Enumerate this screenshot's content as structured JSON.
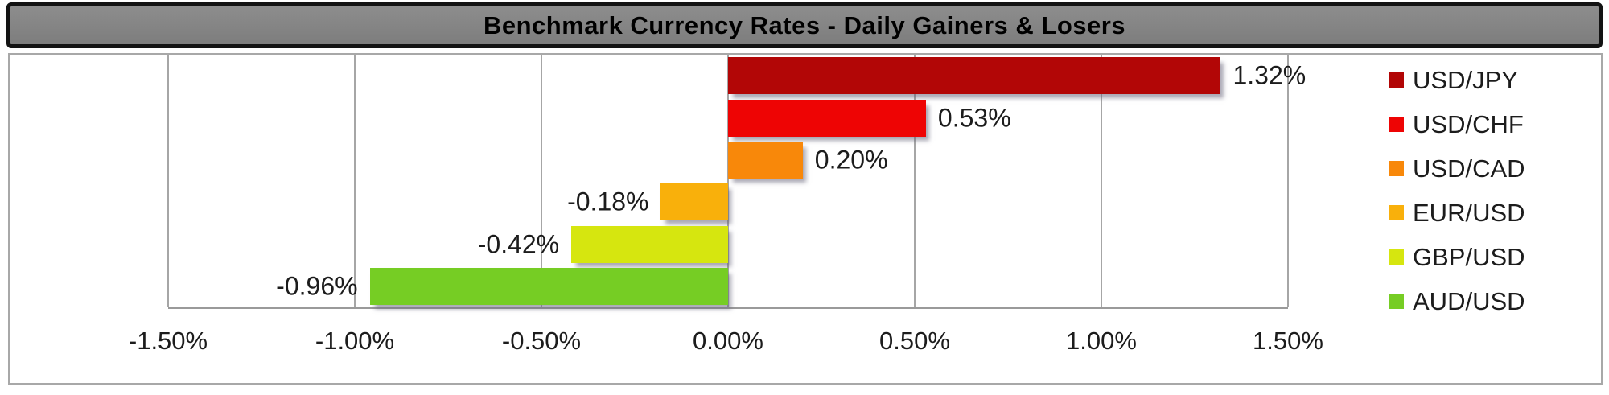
{
  "title": "Benchmark Currency Rates - Daily Gainers & Losers",
  "colors": {
    "title_bg": "#828282",
    "title_border": "#131313",
    "title_text": "#000000",
    "chart_border": "#a8a8a8",
    "gridline": "#a6a6a6",
    "axis_line": "#9a9a9a",
    "text": "#1c1c1c"
  },
  "chart_data": {
    "type": "bar",
    "orientation": "horizontal",
    "title": "Benchmark Currency Rates - Daily Gainers & Losers",
    "grid": true,
    "legend_position": "right",
    "series": [
      {
        "name": "USD/JPY",
        "value": 1.32,
        "label": "1.32%",
        "color": "#b20606"
      },
      {
        "name": "USD/CHF",
        "value": 0.53,
        "label": "0.53%",
        "color": "#ee0404"
      },
      {
        "name": "USD/CAD",
        "value": 0.2,
        "label": "0.20%",
        "color": "#f8880a"
      },
      {
        "name": "EUR/USD",
        "value": -0.18,
        "label": "-0.18%",
        "color": "#f9b00b"
      },
      {
        "name": "GBP/USD",
        "value": -0.42,
        "label": "-0.42%",
        "color": "#d6e60f"
      },
      {
        "name": "AUD/USD",
        "value": -0.96,
        "label": "-0.96%",
        "color": "#76cd24"
      }
    ],
    "x_axis": {
      "min": -1.5,
      "max": 1.5,
      "step": 0.5,
      "ticks": [
        -1.5,
        -1.0,
        -0.5,
        0.0,
        0.5,
        1.0,
        1.5
      ],
      "tick_labels": [
        "-1.50%",
        "-1.00%",
        "-0.50%",
        "0.00%",
        "0.50%",
        "1.00%",
        "1.50%"
      ]
    },
    "legend": [
      "USD/JPY",
      "USD/CHF",
      "USD/CAD",
      "EUR/USD",
      "GBP/USD",
      "AUD/USD"
    ]
  }
}
